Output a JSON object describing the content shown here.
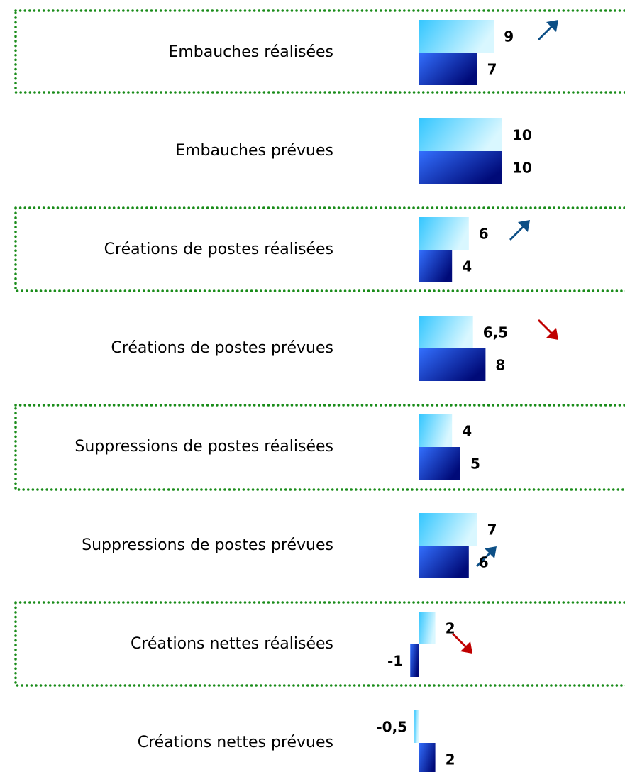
{
  "chart_data": {
    "type": "bar",
    "categories": [
      "Embauches réalisées",
      "Embauches prévues",
      "Créations de postes réalisées",
      "Créations de postes prévues",
      "Suppressions de postes réalisées",
      "Suppressions de postes prévues",
      "Créations nettes réalisées",
      "Créations nettes prévues"
    ],
    "series": [
      {
        "color": "#33ccff",
        "values": [
          9,
          10,
          6,
          6.5,
          4,
          7,
          2,
          -0.5
        ],
        "value_labels": [
          "9",
          "10",
          "6",
          "6,5",
          "4",
          "7",
          "2",
          "-0,5"
        ]
      },
      {
        "color": "#1f3fd6",
        "values": [
          7,
          10,
          4,
          8,
          5,
          6,
          -1,
          2
        ]
      }
    ]
  }
}
